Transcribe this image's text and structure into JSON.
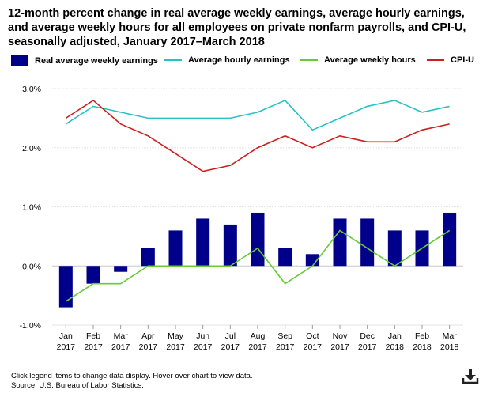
{
  "title": "12-month percent change in real average weekly earnings, average hourly earnings, and average weekly hours for all employees on private nonfarm payrolls, and CPI-U, seasonally adjusted, January 2017–March 2018",
  "legend": [
    {
      "label": "Real average weekly earnings",
      "kind": "bar",
      "color": "#00008b"
    },
    {
      "label": "Average hourly earnings",
      "kind": "line",
      "color": "#27c2c6"
    },
    {
      "label": "Average weekly hours",
      "kind": "line",
      "color": "#66cc33"
    },
    {
      "label": "CPI-U",
      "kind": "line",
      "color": "#cc1f1f"
    }
  ],
  "footer": {
    "note": "Click legend items to change data display. Hover over chart to view data.",
    "source": "Source: U.S. Bureau of Labor Statistics."
  },
  "icons": {
    "download": "download-icon"
  },
  "chart_data": {
    "type": "bar",
    "title": "12-month percent change in real average weekly earnings, average hourly earnings, and average weekly hours for all employees on private nonfarm payrolls, and CPI-U, seasonally adjusted, January 2017–March 2018",
    "xlabel": "",
    "ylabel": "",
    "ylim": [
      -1.0,
      3.0
    ],
    "yticks": [
      "-1.0%",
      "0.0%",
      "1.0%",
      "2.0%",
      "3.0%"
    ],
    "ytick_values": [
      -1.0,
      0.0,
      1.0,
      2.0,
      3.0
    ],
    "categories": [
      [
        "Jan",
        "2017"
      ],
      [
        "Feb",
        "2017"
      ],
      [
        "Mar",
        "2017"
      ],
      [
        "Apr",
        "2017"
      ],
      [
        "May",
        "2017"
      ],
      [
        "Jun",
        "2017"
      ],
      [
        "Jul",
        "2017"
      ],
      [
        "Aug",
        "2017"
      ],
      [
        "Sep",
        "2017"
      ],
      [
        "Oct",
        "2017"
      ],
      [
        "Nov",
        "2017"
      ],
      [
        "Dec",
        "2017"
      ],
      [
        "Jan",
        "2018"
      ],
      [
        "Feb",
        "2018"
      ],
      [
        "Mar",
        "2018"
      ]
    ],
    "series": [
      {
        "name": "Real average weekly earnings",
        "type": "bar",
        "color": "#00008b",
        "values": [
          -0.7,
          -0.3,
          -0.1,
          0.3,
          0.6,
          0.8,
          0.7,
          0.9,
          0.3,
          0.2,
          0.8,
          0.8,
          0.6,
          0.6,
          0.9
        ]
      },
      {
        "name": "Average hourly earnings",
        "type": "line",
        "color": "#27c2c6",
        "values": [
          2.4,
          2.7,
          2.6,
          2.5,
          2.5,
          2.5,
          2.5,
          2.6,
          2.8,
          2.3,
          2.5,
          2.7,
          2.8,
          2.6,
          2.7
        ]
      },
      {
        "name": "Average weekly hours",
        "type": "line",
        "color": "#66cc33",
        "values": [
          -0.6,
          -0.3,
          -0.3,
          0.0,
          0.0,
          0.0,
          0.0,
          0.3,
          -0.3,
          0.0,
          0.6,
          0.3,
          0.0,
          0.3,
          0.6
        ]
      },
      {
        "name": "CPI-U",
        "type": "line",
        "color": "#cc1f1f",
        "values": [
          2.5,
          2.8,
          2.4,
          2.2,
          1.9,
          1.6,
          1.7,
          2.0,
          2.2,
          2.0,
          2.2,
          2.1,
          2.1,
          2.3,
          2.4
        ]
      }
    ],
    "grid": true,
    "legend_position": "top"
  }
}
